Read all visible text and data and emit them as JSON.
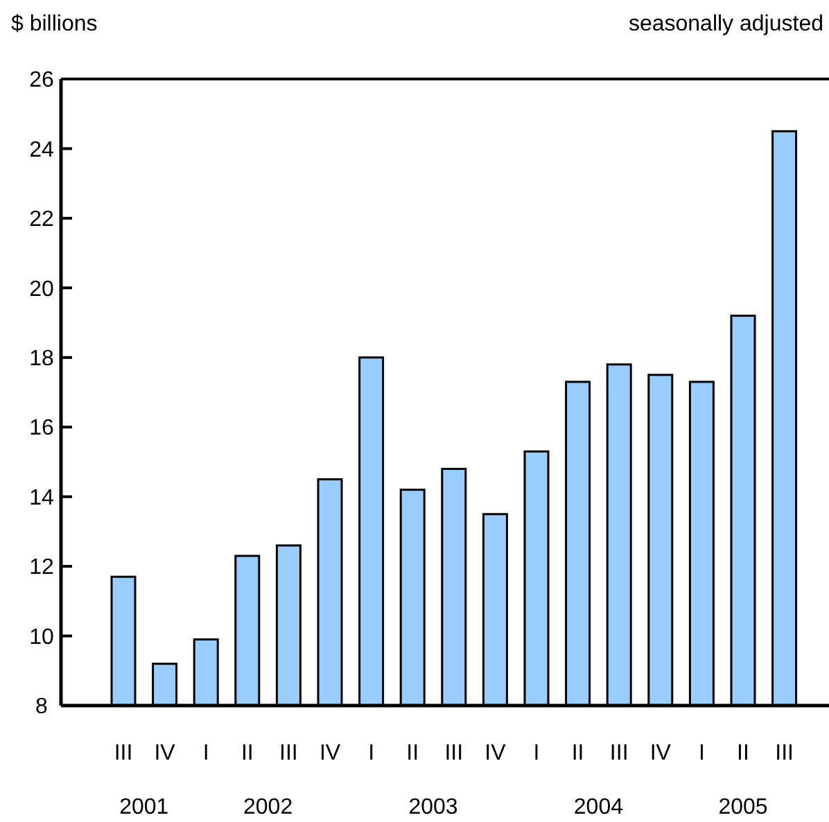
{
  "chart_data": {
    "type": "bar",
    "ylabel": "$ billions",
    "subtitle": "seasonally adjusted",
    "categories": [
      "III",
      "IV",
      "I",
      "II",
      "III",
      "IV",
      "I",
      "II",
      "III",
      "IV",
      "I",
      "II",
      "III",
      "IV",
      "I",
      "II",
      "III"
    ],
    "values": [
      11.7,
      9.2,
      9.9,
      12.3,
      12.6,
      14.5,
      18.0,
      14.2,
      14.8,
      13.5,
      15.3,
      17.3,
      17.8,
      17.5,
      17.3,
      19.2,
      24.5
    ],
    "color": "#99ccff",
    "ylim": [
      8,
      26
    ],
    "yticks": [
      8,
      10,
      12,
      14,
      16,
      18,
      20,
      22,
      24,
      26
    ],
    "grid": false,
    "annotations": [
      "2001",
      "2002",
      "2003",
      "2004",
      "2005"
    ]
  }
}
